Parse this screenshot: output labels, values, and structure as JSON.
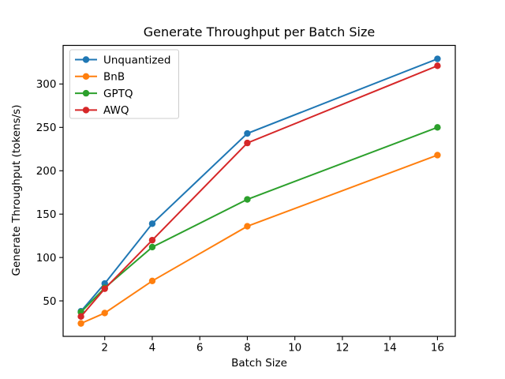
{
  "figure": {
    "background": "#ffffff",
    "axis_color": "#000000",
    "text_color": "#000000"
  },
  "chart_data": {
    "type": "line",
    "title": "Generate Throughput per Batch Size",
    "xlabel": "Batch Size",
    "ylabel": "Generate Throughput (tokens/s)",
    "x": [
      1,
      2,
      4,
      8,
      16
    ],
    "series": [
      {
        "name": "Unquantized",
        "color": "#1f77b4",
        "values": [
          38,
          70,
          139,
          243,
          329
        ]
      },
      {
        "name": "BnB",
        "color": "#ff7f0e",
        "values": [
          24,
          36,
          73,
          136,
          218
        ]
      },
      {
        "name": "GPTQ",
        "color": "#2ca02c",
        "values": [
          37,
          65,
          112,
          167,
          250
        ]
      },
      {
        "name": "AWQ",
        "color": "#d62728",
        "values": [
          32,
          64,
          120,
          232,
          321
        ]
      }
    ],
    "xticks": [
      2,
      4,
      6,
      8,
      10,
      12,
      14,
      16
    ],
    "yticks": [
      50,
      100,
      150,
      200,
      250,
      300
    ],
    "xlim": [
      0.25,
      16.75
    ],
    "ylim": [
      9.1,
      344.5
    ],
    "grid": false,
    "marker": "o",
    "legend": {
      "position": "upper left",
      "border_color": "#cccccc",
      "background": "#ffffff"
    }
  }
}
